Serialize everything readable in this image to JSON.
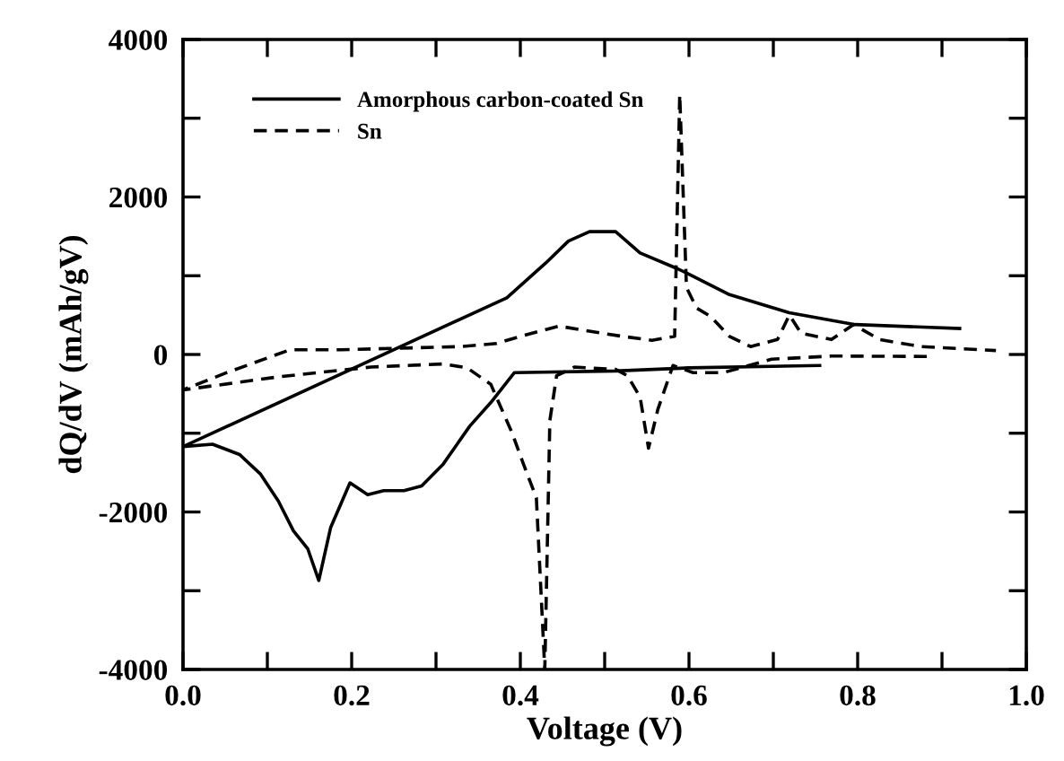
{
  "chart_data": {
    "type": "line",
    "xlabel": "Voltage (V)",
    "ylabel": "dQ/dV (mAh/gV)",
    "xlim": [
      0,
      1.0
    ],
    "ylim": [
      -4000,
      4000
    ],
    "xticks": [
      {
        "value": 0,
        "label": "0.0"
      },
      {
        "value": 0.1,
        "label": null
      },
      {
        "value": 0.2,
        "label": "0.2"
      },
      {
        "value": 0.3,
        "label": null
      },
      {
        "value": 0.4,
        "label": "0.4"
      },
      {
        "value": 0.5,
        "label": null
      },
      {
        "value": 0.6,
        "label": "0.6"
      },
      {
        "value": 0.7,
        "label": null
      },
      {
        "value": 0.8,
        "label": "0.8"
      },
      {
        "value": 0.9,
        "label": null
      },
      {
        "value": 1.0,
        "label": "1.0"
      }
    ],
    "yticks": [
      -4000,
      {
        "value": -3000,
        "label": null
      },
      -2000,
      {
        "value": -1000,
        "label": null
      },
      0,
      {
        "value": 1000,
        "label": null
      },
      2000,
      {
        "value": 3000,
        "label": null
      },
      4000
    ],
    "grid": false,
    "legend": "top left",
    "marker": "none",
    "series": [
      {
        "name": "Amorphous carbon-coated Sn",
        "color": "#000000",
        "line_style": "solid",
        "x": [
          0.755,
          0.6,
          0.513,
          0.393,
          0.365,
          0.34,
          0.308,
          0.283,
          0.262,
          0.238,
          0.219,
          0.198,
          0.175,
          0.161,
          0.148,
          0.131,
          0.113,
          0.092,
          0.067,
          0.035,
          0.0,
          0.384,
          0.43,
          0.457,
          0.482,
          0.507,
          0.513,
          0.542,
          0.584,
          0.598,
          0.648,
          0.719,
          0.797,
          0.921
        ],
        "values": [
          -140,
          -170,
          -210,
          -230,
          -610,
          -910,
          -1400,
          -1670,
          -1730,
          -1730,
          -1780,
          -1630,
          -2200,
          -2870,
          -2470,
          -2240,
          -1860,
          -1520,
          -1270,
          -1140,
          -1170,
          720,
          1160,
          1440,
          1560,
          1560,
          1560,
          1290,
          1100,
          1030,
          760,
          530,
          380,
          330
        ]
      },
      {
        "name": "Sn",
        "color": "#000000",
        "line_style": "dashed",
        "x": [
          0.882,
          0.769,
          0.698,
          0.641,
          0.605,
          0.581,
          0.563,
          0.552,
          0.542,
          0.527,
          0.513,
          0.464,
          0.443,
          0.435,
          0.429,
          0.419,
          0.404,
          0.39,
          0.365,
          0.337,
          0.308,
          0.223,
          0.116,
          0.0,
          0.052,
          0.127,
          0.187,
          0.329,
          0.372,
          0.4,
          0.446,
          0.485,
          0.521,
          0.556,
          0.583,
          0.589,
          0.597,
          0.609,
          0.626,
          0.648,
          0.673,
          0.705,
          0.719,
          0.733,
          0.769,
          0.795,
          0.826,
          0.875,
          0.964
        ],
        "values": [
          -25,
          -20,
          -60,
          -230,
          -230,
          -140,
          -700,
          -1190,
          -540,
          -270,
          -190,
          -160,
          -270,
          -840,
          -4000,
          -1820,
          -1400,
          -990,
          -380,
          -170,
          -120,
          -160,
          -280,
          -450,
          -230,
          60,
          60,
          100,
          140,
          230,
          360,
          290,
          230,
          180,
          230,
          3300,
          850,
          590,
          480,
          230,
          100,
          190,
          500,
          270,
          190,
          380,
          190,
          100,
          50
        ]
      }
    ]
  }
}
